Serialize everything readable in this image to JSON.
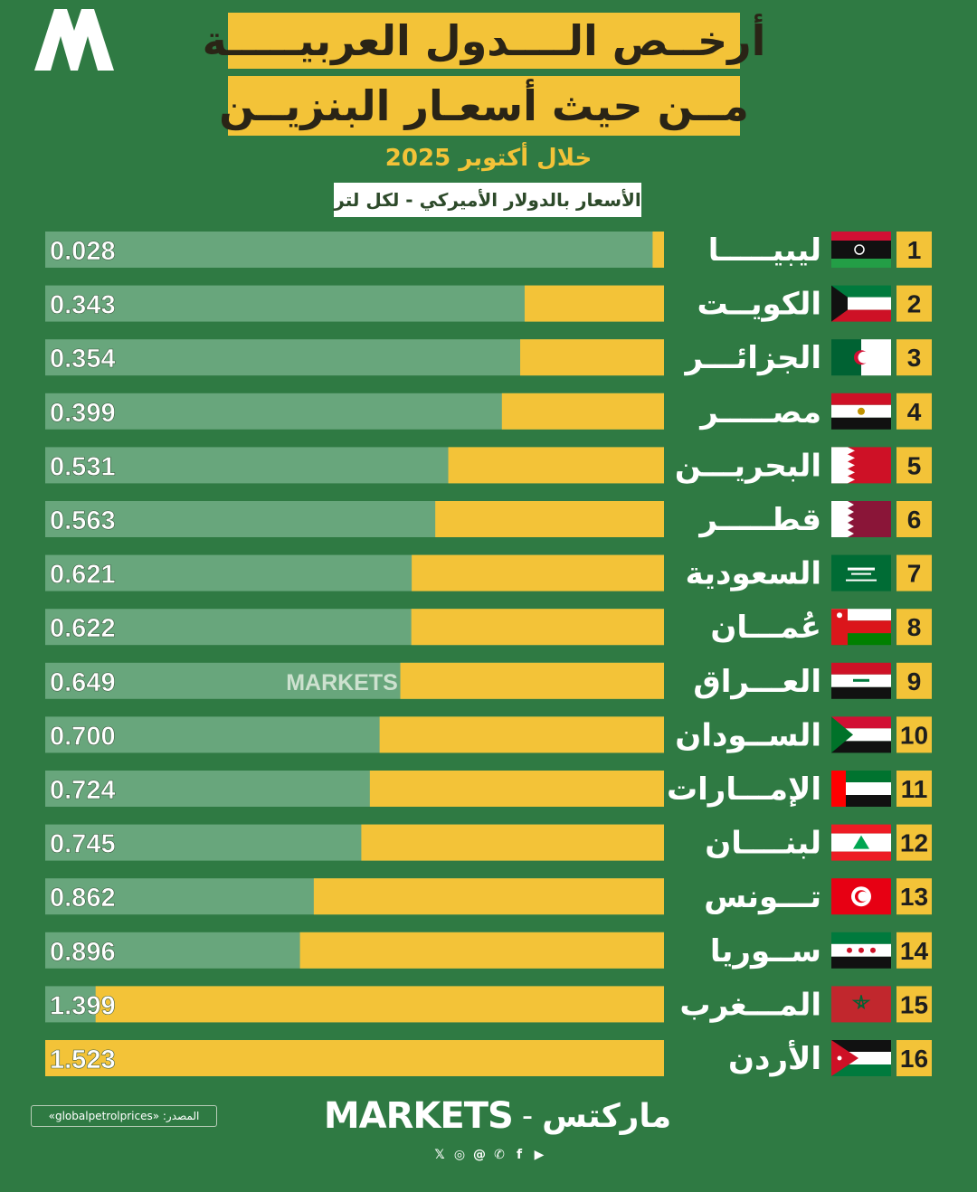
{
  "header": {
    "title_line1": "أرخــص الــــدول العربيـــــة",
    "title_line2": "مــن حيث أسعـار البنزيــن",
    "period": "خلال أكتوبر 2025",
    "unit_note": "الأسعار بالدولار الأميركي - لكل لتر"
  },
  "watermark": "MARKETS",
  "footer": {
    "source": "المصدر: «globalpetrolprices»",
    "brand_en": "MARKETS",
    "brand_sep": "-",
    "brand_ar": "ماركتس",
    "social_icons": [
      "x-icon",
      "instagram-icon",
      "threads-icon",
      "whatsapp-icon",
      "facebook-icon",
      "youtube-icon"
    ]
  },
  "colors": {
    "background": "#2f7a43",
    "bar_value": "#f3c338",
    "bar_track": "#68a67c",
    "rank_box": "#f3c338"
  },
  "chart_data": {
    "type": "bar",
    "orientation": "horizontal",
    "categories": [
      "ليبيـــــا",
      "الكويــت",
      "الجزائـــر",
      "مصـــــر",
      "البحريـــن",
      "قطـــــر",
      "السعودية",
      "عُمـــان",
      "العـــراق",
      "الســودان",
      "الإمـــارات",
      "لبنــــان",
      "تـــونس",
      "ســوريا",
      "المـــغرب",
      "الأردن"
    ],
    "ranks": [
      "1",
      "2",
      "3",
      "4",
      "5",
      "6",
      "7",
      "8",
      "9",
      "10",
      "11",
      "12",
      "13",
      "14",
      "15",
      "16"
    ],
    "flags": [
      "libya",
      "kuwait",
      "algeria",
      "egypt",
      "bahrain",
      "qatar",
      "saudi-arabia",
      "oman",
      "iraq",
      "sudan",
      "uae",
      "lebanon",
      "tunisia",
      "syria",
      "morocco",
      "jordan"
    ],
    "values": [
      0.028,
      0.343,
      0.354,
      0.399,
      0.531,
      0.563,
      0.621,
      0.622,
      0.649,
      0.7,
      0.724,
      0.745,
      0.862,
      0.896,
      1.399,
      1.523
    ],
    "value_labels": [
      "0.028",
      "0.343",
      "0.354",
      "0.399",
      "0.531",
      "0.563",
      "0.621",
      "0.622",
      "0.649",
      "0.700",
      "0.724",
      "0.745",
      "0.862",
      "0.896",
      "1.399",
      "1.523"
    ],
    "xlim": [
      0,
      1.523
    ]
  }
}
